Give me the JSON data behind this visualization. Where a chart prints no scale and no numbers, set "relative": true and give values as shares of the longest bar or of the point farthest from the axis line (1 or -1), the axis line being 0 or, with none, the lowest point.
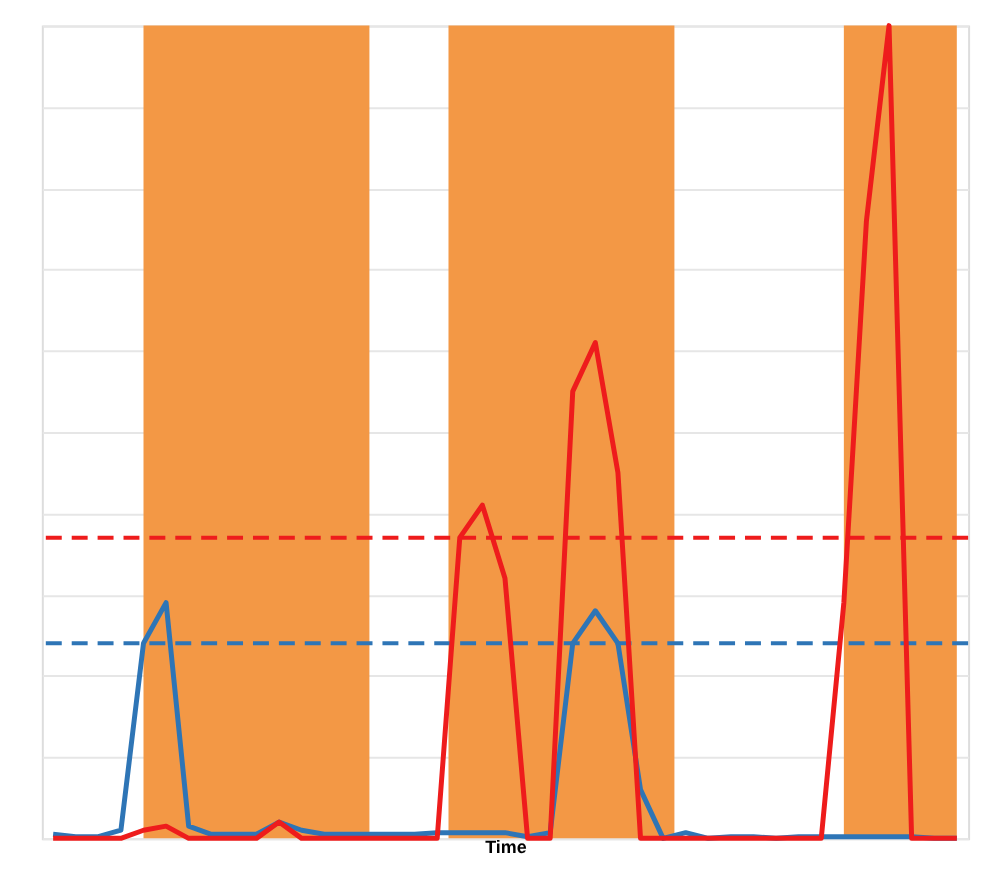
{
  "chart_data": {
    "type": "line",
    "xlabel": "Time",
    "relative": true,
    "grid": "y",
    "line_style": "solid",
    "marker": "none",
    "categories": [
      null,
      null,
      null,
      null,
      null,
      null,
      null,
      null,
      null,
      null,
      null,
      null,
      null,
      null,
      null,
      null,
      null,
      null,
      null,
      null,
      null,
      null,
      null,
      null,
      null,
      null,
      null,
      null,
      null,
      null,
      null,
      null,
      null,
      null,
      null,
      null,
      null,
      null,
      null,
      null,
      null
    ],
    "series": [
      {
        "color": "#2e75b6",
        "values": [
          0.005,
          0.002,
          0.002,
          0.01,
          0.24,
          0.29,
          0.015,
          0.005,
          0.005,
          0.005,
          0.02,
          0.01,
          0.005,
          0.005,
          0.005,
          0.005,
          0.005,
          0.007,
          0.007,
          0.007,
          0.007,
          0.002,
          0.007,
          0.24,
          0.28,
          0.24,
          0.06,
          0,
          0.007,
          0,
          0.002,
          0.002,
          0,
          0.002,
          0.002,
          0.002,
          0.002,
          0.002,
          0.002,
          0,
          0
        ]
      },
      {
        "color": "#ee1c1c",
        "values": [
          0,
          0,
          0,
          0,
          0.01,
          0.015,
          0,
          0,
          0,
          0,
          0.02,
          0,
          0,
          0,
          0,
          0,
          0,
          0,
          0.37,
          0.41,
          0.32,
          0,
          0,
          0.55,
          0.61,
          0.45,
          0,
          0,
          0,
          0,
          0,
          0,
          0,
          0,
          0,
          0.29,
          0.76,
          1,
          0,
          0,
          0
        ]
      }
    ],
    "ref_lines": [
      {
        "axis": "y",
        "value": 0.37,
        "color": "#ee1c1c",
        "line_style": "dashed"
      },
      {
        "axis": "y",
        "value": 0.24,
        "color": "#2e75b6",
        "line_style": "dashed"
      }
    ]
  }
}
